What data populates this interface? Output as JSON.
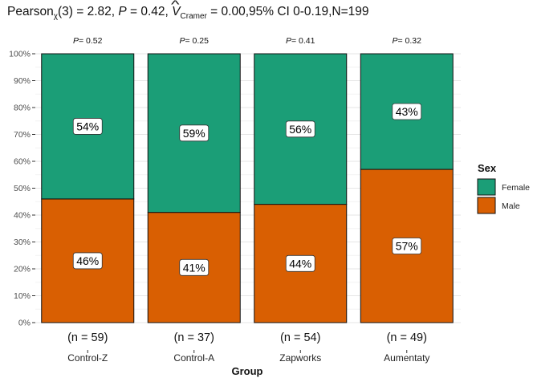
{
  "title": {
    "stat_name": "Pearson",
    "stat_sub": "χ",
    "stat_df": "(3) = 2.82, ",
    "p_label": "P",
    "p_value": " = 0.42, ",
    "effect_symbol": "V",
    "effect_sub": "Cramer",
    "effect_text": " = 0.00,95% CI 0-0.19,N=199"
  },
  "chart_data": {
    "type": "bar",
    "subtype": "stacked-percent",
    "title": "Pearson χ(3) = 2.82, P = 0.42, V̂ Cramer = 0.00,95% CI 0-0.19,N=199",
    "xlabel": "Group",
    "ylabel": "",
    "ylim": [
      0,
      100
    ],
    "yticks": [
      "0%",
      "10%",
      "20%",
      "30%",
      "40%",
      "50%",
      "60%",
      "70%",
      "80%",
      "90%",
      "100%"
    ],
    "categories": [
      "Control-Z",
      "Control-A",
      "Zapworks",
      "Aumentaty"
    ],
    "n_labels": [
      "(n = 59)",
      "(n = 37)",
      "(n = 54)",
      "(n = 49)"
    ],
    "p_labels": [
      "= 0.52",
      "= 0.25",
      "= 0.41",
      "= 0.32"
    ],
    "p_prefix": "P",
    "series": [
      {
        "name": "Male",
        "color": "#d95f02",
        "values": [
          46,
          41,
          44,
          57
        ],
        "labels": [
          "46%",
          "41%",
          "44%",
          "57%"
        ]
      },
      {
        "name": "Female",
        "color": "#1b9e77",
        "values": [
          54,
          59,
          56,
          43
        ],
        "labels": [
          "54%",
          "59%",
          "56%",
          "43%"
        ]
      }
    ],
    "legend": {
      "title": "Sex",
      "position": "right",
      "entries": [
        {
          "label": "Female",
          "color": "#1b9e77"
        },
        {
          "label": "Male",
          "color": "#d95f02"
        }
      ]
    },
    "grid": true
  }
}
